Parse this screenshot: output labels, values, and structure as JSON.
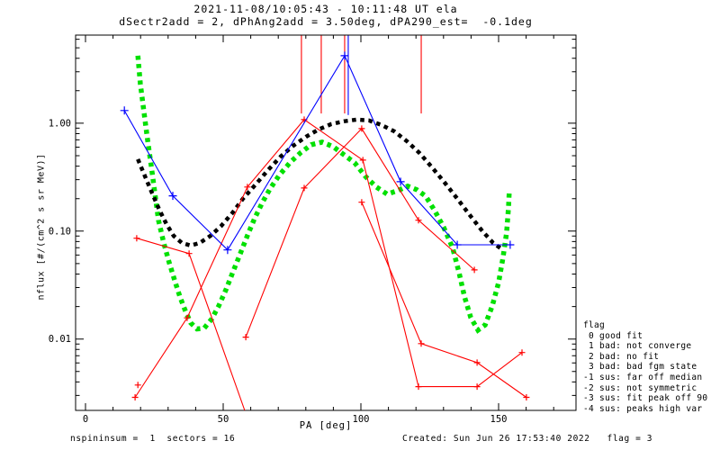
{
  "header": {
    "title": "2021-11-08/10:05:43 - 10:11:48 UT ela",
    "subtitle": "dSectr2add = 2, dPhAng2add = 3.50deg, dPA290_est=  -0.1deg"
  },
  "footer": {
    "left": "nspininsum =  1  sectors = 16",
    "right": "Created: Sun Jun 26 17:53:40 2022   flag = 3"
  },
  "legend": {
    "lines": [
      "flag",
      " 0 good fit",
      " 1 bad: not converge",
      " 2 bad: no fit",
      " 3 bad: bad fgm state",
      "-1 sus: far off median",
      "-2 sus: not symmetric",
      "-3 sus: fit peak off 90",
      "-4 sus: peaks high var"
    ]
  },
  "chart_data": {
    "type": "line",
    "title": "2021-11-08/10:05:43 - 10:11:48 UT ela",
    "subtitle": "dSectr2add = 2, dPhAng2add = 3.50deg, dPA290_est=  -0.1deg",
    "xlabel": "PA [deg]",
    "ylabel": "nflux [#/(cm^2 s sr MeV)]",
    "grid": false,
    "legend_position": "right-outside",
    "x_axis": {
      "lim": [
        -3.6,
        178.1
      ],
      "major_ticks": [
        0,
        50,
        100,
        150
      ],
      "minor_step": 10
    },
    "y_axis": {
      "scale": "log",
      "lim": [
        0.00218,
        6.55
      ],
      "major_ticks": [
        1.0,
        0.1,
        0.01
      ],
      "tick_labels": [
        "1.00",
        "0.10",
        "0.01"
      ]
    },
    "series": [
      {
        "name": "green-dotted-fit",
        "color": "#00e000",
        "line": "dotted",
        "marker": "none",
        "points": [
          [
            19.0,
            4.22
          ],
          [
            19.9,
            2.33
          ],
          [
            21.2,
            1.28
          ],
          [
            22.5,
            0.708
          ],
          [
            23.9,
            0.398
          ],
          [
            25.2,
            0.224
          ],
          [
            26.5,
            0.126
          ],
          [
            28.4,
            0.078
          ],
          [
            30.4,
            0.051
          ],
          [
            32.4,
            0.0347
          ],
          [
            34.3,
            0.0245
          ],
          [
            36.3,
            0.0181
          ],
          [
            38.2,
            0.0141
          ],
          [
            40.5,
            0.0124
          ],
          [
            43.1,
            0.0126
          ],
          [
            45.8,
            0.0153
          ],
          [
            48.4,
            0.0203
          ],
          [
            51.0,
            0.0287
          ],
          [
            53.6,
            0.0422
          ],
          [
            56.2,
            0.0619
          ],
          [
            58.8,
            0.0909
          ],
          [
            61.4,
            0.131
          ],
          [
            64.1,
            0.182
          ],
          [
            67.0,
            0.246
          ],
          [
            70.3,
            0.328
          ],
          [
            74.2,
            0.43
          ],
          [
            78.1,
            0.532
          ],
          [
            82.0,
            0.631
          ],
          [
            85.9,
            0.668
          ],
          [
            89.9,
            0.607
          ],
          [
            93.8,
            0.511
          ],
          [
            97.7,
            0.43
          ],
          [
            101.6,
            0.322
          ],
          [
            105.6,
            0.256
          ],
          [
            109.5,
            0.22
          ],
          [
            113.4,
            0.237
          ],
          [
            117.0,
            0.261
          ],
          [
            120.3,
            0.242
          ],
          [
            123.5,
            0.211
          ],
          [
            126.8,
            0.155
          ],
          [
            130.1,
            0.108
          ],
          [
            133.3,
            0.07
          ],
          [
            135.6,
            0.0415
          ],
          [
            137.6,
            0.0247
          ],
          [
            139.9,
            0.0158
          ],
          [
            142.5,
            0.0121
          ],
          [
            145.1,
            0.0135
          ],
          [
            147.7,
            0.0203
          ],
          [
            150.0,
            0.0334
          ],
          [
            151.6,
            0.0568
          ],
          [
            152.9,
            0.0968
          ],
          [
            153.6,
            0.165
          ],
          [
            153.9,
            0.237
          ]
        ]
      },
      {
        "name": "black-dotted-median",
        "color": "#000000",
        "line": "dotted",
        "marker": "none",
        "points": [
          [
            19.0,
            0.464
          ],
          [
            21.6,
            0.322
          ],
          [
            24.2,
            0.224
          ],
          [
            26.8,
            0.158
          ],
          [
            29.4,
            0.116
          ],
          [
            32.0,
            0.0905
          ],
          [
            35.0,
            0.0777
          ],
          [
            38.2,
            0.0735
          ],
          [
            41.5,
            0.0777
          ],
          [
            45.4,
            0.0905
          ],
          [
            49.3,
            0.112
          ],
          [
            53.3,
            0.147
          ],
          [
            57.2,
            0.2
          ],
          [
            61.8,
            0.271
          ],
          [
            66.3,
            0.368
          ],
          [
            70.9,
            0.492
          ],
          [
            75.5,
            0.619
          ],
          [
            80.1,
            0.75
          ],
          [
            84.6,
            0.874
          ],
          [
            89.2,
            0.981
          ],
          [
            93.8,
            1.04
          ],
          [
            98.4,
            1.08
          ],
          [
            102.9,
            1.06
          ],
          [
            107.5,
            0.962
          ],
          [
            112.1,
            0.841
          ],
          [
            116.7,
            0.681
          ],
          [
            121.2,
            0.531
          ],
          [
            125.8,
            0.39
          ],
          [
            130.4,
            0.282
          ],
          [
            135.0,
            0.2
          ],
          [
            139.5,
            0.141
          ],
          [
            144.1,
            0.1
          ],
          [
            148.0,
            0.0777
          ],
          [
            150.7,
            0.0694
          ]
        ]
      },
      {
        "name": "red-curve-1",
        "color": "#ff0000",
        "line": "solid",
        "marker": "plus",
        "points": [
          [
            18.0,
            0.00288
          ],
          [
            36.9,
            0.0157
          ],
          [
            58.8,
            0.256
          ],
          [
            79.4,
            1.08
          ],
          [
            100.7,
            0.455
          ],
          [
            120.9,
            0.00362
          ],
          [
            142.2,
            0.00362
          ],
          [
            158.5,
            0.0075
          ]
        ]
      },
      {
        "name": "red-curve-2",
        "color": "#ff0000",
        "line": "solid",
        "marker": "plus",
        "points": [
          [
            18.6,
            0.0858
          ],
          [
            37.6,
            0.062
          ],
          [
            57.8,
            0.00218
          ]
        ]
      },
      {
        "name": "red-curve-3",
        "color": "#ff0000",
        "line": "solid",
        "marker": "plus",
        "points": [
          [
            58.2,
            0.0104
          ],
          [
            79.4,
            0.251
          ],
          [
            100.3,
            0.891
          ],
          [
            120.9,
            0.126
          ],
          [
            141.2,
            0.0437
          ]
        ]
      },
      {
        "name": "red-curve-4",
        "color": "#ff0000",
        "line": "solid",
        "marker": "plus",
        "points": [
          [
            100.3,
            0.185
          ],
          [
            121.9,
            0.00906
          ],
          [
            142.2,
            0.00604
          ],
          [
            160.1,
            0.00288
          ]
        ]
      },
      {
        "name": "red-isolated-point",
        "color": "#ff0000",
        "line": "none",
        "marker": "plus",
        "points": [
          [
            19.0,
            0.00375
          ]
        ]
      },
      {
        "name": "blue-fit-curve",
        "color": "#0000ff",
        "line": "solid",
        "marker": "plus",
        "points": [
          [
            14.1,
            1.31
          ],
          [
            31.7,
            0.212
          ],
          [
            51.6,
            0.0669
          ],
          [
            94.1,
            4.22
          ],
          [
            114.4,
            0.287
          ],
          [
            135.0,
            0.0746
          ],
          [
            154.2,
            0.0746
          ]
        ]
      }
    ],
    "spikes": [
      {
        "pa": 78.4,
        "color": "#ff0000",
        "flux_bottom": 1.23
      },
      {
        "pa": 85.6,
        "color": "#ff0000",
        "flux_bottom": 1.23
      },
      {
        "pa": 94.1,
        "color": "#ff0000",
        "flux_bottom": 1.23
      },
      {
        "pa": 121.9,
        "color": "#ff0000",
        "flux_bottom": 1.23
      },
      {
        "pa": 95.4,
        "color": "#0000ff",
        "flux_bottom": 1.19
      }
    ]
  }
}
